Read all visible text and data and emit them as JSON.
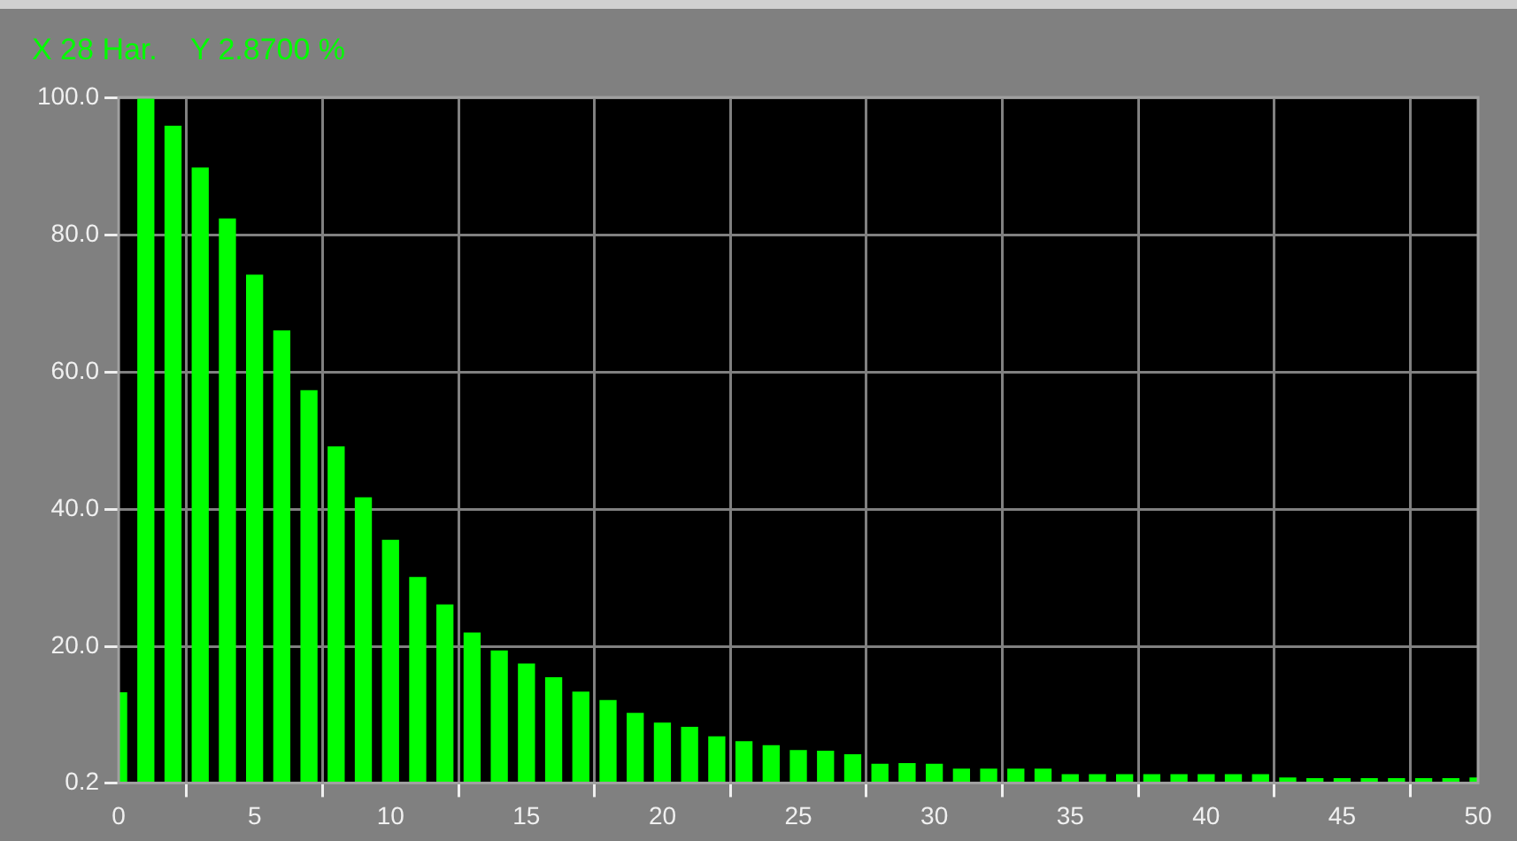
{
  "chart_data": {
    "type": "bar",
    "x": [
      0,
      1,
      2,
      3,
      4,
      5,
      6,
      7,
      8,
      9,
      10,
      11,
      12,
      13,
      14,
      15,
      16,
      17,
      18,
      19,
      20,
      21,
      22,
      23,
      24,
      25,
      26,
      27,
      28,
      29,
      30,
      31,
      32,
      33,
      34,
      35,
      36,
      37,
      38,
      39,
      40,
      41,
      42,
      43,
      44,
      45,
      46,
      47,
      48,
      49,
      50
    ],
    "values": [
      13.3,
      100,
      95.8,
      89.7,
      82.3,
      74.1,
      66.0,
      57.3,
      49.1,
      41.7,
      35.5,
      30.1,
      26.1,
      22.0,
      19.4,
      17.5,
      15.5,
      13.4,
      12.2,
      10.3,
      8.9,
      8.3,
      6.9,
      6.2,
      5.6,
      4.9,
      4.8,
      4.3,
      2.9,
      3.0,
      2.9,
      2.2,
      2.2,
      2.2,
      2.2,
      1.4,
      1.4,
      1.4,
      1.4,
      1.4,
      1.4,
      1.4,
      1.4,
      0.9,
      0.8,
      0.8,
      0.8,
      0.8,
      0.8,
      0.8,
      0.9
    ],
    "color": "#00ff00",
    "xlim": [
      0,
      50
    ],
    "xticks": [
      0,
      5,
      10,
      15,
      20,
      25,
      30,
      35,
      40,
      45,
      50
    ],
    "ylim": [
      0.2,
      100
    ],
    "yticks": [
      0.2,
      {
        "value": 20,
        "label": "20.0"
      },
      {
        "value": 40,
        "label": "40.0"
      },
      {
        "value": 60,
        "label": "60.0"
      },
      {
        "value": 80,
        "label": "80.0"
      },
      {
        "value": 100,
        "label": "100.0"
      }
    ],
    "grid": true,
    "annotations": [
      "X 28 Har.    Y 2.8700 %"
    ]
  }
}
